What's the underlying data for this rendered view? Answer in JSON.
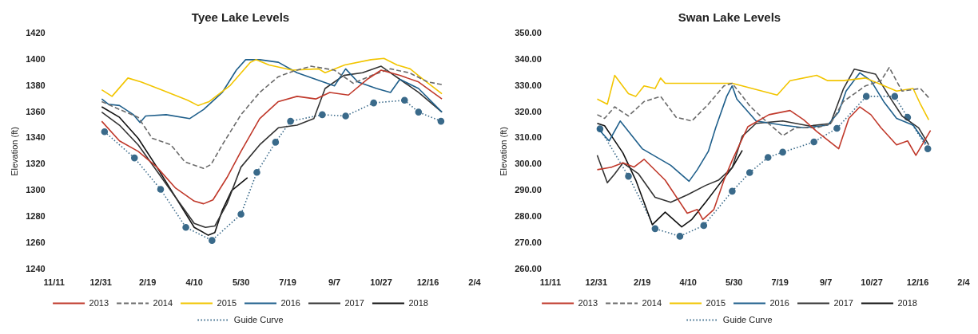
{
  "chart_data": [
    {
      "type": "line",
      "title": "Tyee Lake Levels",
      "ylabel": "Elevation (ft)",
      "xlim": [
        "2017-11-11",
        "2019-02-04"
      ],
      "xticks": [
        {
          "value": "2017-11-11",
          "label": "11/11"
        },
        {
          "value": "2017-12-31",
          "label": "12/31"
        },
        {
          "value": "2018-02-19",
          "label": "2/19"
        },
        {
          "value": "2018-04-10",
          "label": "4/10"
        },
        {
          "value": "2018-05-30",
          "label": "5/30"
        },
        {
          "value": "2018-07-19",
          "label": "7/19"
        },
        {
          "value": "2018-09-07",
          "label": "9/7"
        },
        {
          "value": "2018-10-27",
          "label": "10/27"
        },
        {
          "value": "2018-12-16",
          "label": "12/16"
        },
        {
          "value": "2019-02-04",
          "label": "2/4"
        }
      ],
      "ylim": [
        1240,
        1420
      ],
      "yticks": [
        1240,
        1260,
        1280,
        1300,
        1320,
        1340,
        1360,
        1380,
        1400,
        1420
      ],
      "grid": false,
      "legend": "bottom",
      "series": [
        {
          "name": "2013",
          "color": "#c0392b",
          "line_style": "solid",
          "marker": "none",
          "x": [
            "2018-01-01",
            "2018-01-20",
            "2018-02-09",
            "2018-03-01",
            "2018-03-21",
            "2018-04-10",
            "2018-04-20",
            "2018-04-30",
            "2018-05-15",
            "2018-05-30",
            "2018-06-19",
            "2018-07-09",
            "2018-07-29",
            "2018-08-18",
            "2018-09-02",
            "2018-09-22",
            "2018-10-12",
            "2018-10-27",
            "2018-11-16",
            "2018-12-06",
            "2018-12-31"
          ],
          "values": [
            1353,
            1338,
            1330,
            1318,
            1302,
            1292,
            1290,
            1293,
            1310,
            1330,
            1355,
            1368,
            1372,
            1370,
            1375,
            1373,
            1385,
            1392,
            1388,
            1383,
            1370
          ]
        },
        {
          "name": "2014",
          "color": "#6b6b6b",
          "line_style": "dashed",
          "marker": "none",
          "x": [
            "2018-01-01",
            "2018-01-20",
            "2018-02-09",
            "2018-02-24",
            "2018-03-16",
            "2018-03-31",
            "2018-04-20",
            "2018-04-28",
            "2018-05-10",
            "2018-05-30",
            "2018-06-19",
            "2018-07-09",
            "2018-07-24",
            "2018-08-13",
            "2018-09-07",
            "2018-09-27",
            "2018-10-17",
            "2018-11-06",
            "2018-11-26",
            "2018-12-16",
            "2018-12-31"
          ],
          "values": [
            1368,
            1362,
            1356,
            1340,
            1335,
            1322,
            1317,
            1320,
            1335,
            1358,
            1375,
            1387,
            1391,
            1395,
            1392,
            1382,
            1388,
            1393,
            1390,
            1383,
            1381
          ]
        },
        {
          "name": "2015",
          "color": "#f2c500",
          "line_style": "solid",
          "marker": "none",
          "x": [
            "2018-01-01",
            "2018-01-12",
            "2018-01-29",
            "2018-02-12",
            "2018-03-06",
            "2018-04-03",
            "2018-04-14",
            "2018-04-26",
            "2018-05-18",
            "2018-06-09",
            "2018-06-15",
            "2018-06-29",
            "2018-07-24",
            "2018-08-21",
            "2018-08-28",
            "2018-09-18",
            "2018-10-16",
            "2018-10-30",
            "2018-11-13",
            "2018-11-27",
            "2018-12-11",
            "2018-12-31"
          ],
          "values": [
            1377,
            1372,
            1386,
            1383,
            1377,
            1369,
            1365,
            1368,
            1380,
            1398,
            1400,
            1396,
            1392,
            1393,
            1390,
            1396,
            1400,
            1401,
            1396,
            1393,
            1385,
            1374
          ]
        },
        {
          "name": "2016",
          "color": "#1f5f8b",
          "line_style": "solid",
          "marker": "none",
          "x": [
            "2018-01-01",
            "2018-01-08",
            "2018-01-20",
            "2018-02-04",
            "2018-02-11",
            "2018-02-17",
            "2018-03-11",
            "2018-04-05",
            "2018-04-20",
            "2018-05-10",
            "2018-05-25",
            "2018-06-04",
            "2018-06-19",
            "2018-07-09",
            "2018-07-29",
            "2018-08-18",
            "2018-09-07",
            "2018-09-19",
            "2018-10-02",
            "2018-10-22",
            "2018-11-06",
            "2018-11-16",
            "2018-12-06",
            "2018-12-31"
          ],
          "values": [
            1370,
            1366,
            1365,
            1358,
            1352,
            1357,
            1358,
            1355,
            1362,
            1375,
            1392,
            1400,
            1400,
            1398,
            1390,
            1385,
            1380,
            1393,
            1383,
            1378,
            1375,
            1385,
            1378,
            1360
          ]
        },
        {
          "name": "2017",
          "color": "#333333",
          "line_style": "solid",
          "marker": "none",
          "x": [
            "2018-01-01",
            "2018-01-20",
            "2018-02-09",
            "2018-03-01",
            "2018-03-21",
            "2018-04-10",
            "2018-04-22",
            "2018-05-02",
            "2018-05-15",
            "2018-05-30",
            "2018-06-19",
            "2018-07-09",
            "2018-07-29",
            "2018-08-16",
            "2018-08-28",
            "2018-09-17",
            "2018-10-07",
            "2018-10-27",
            "2018-11-16",
            "2018-12-06",
            "2018-12-31"
          ],
          "values": [
            1360,
            1350,
            1335,
            1315,
            1295,
            1275,
            1272,
            1273,
            1290,
            1318,
            1335,
            1348,
            1350,
            1355,
            1378,
            1388,
            1390,
            1395,
            1385,
            1375,
            1360
          ]
        },
        {
          "name": "2018",
          "color": "#111111",
          "line_style": "solid",
          "marker": "none",
          "x": [
            "2018-01-01",
            "2018-01-20",
            "2018-02-09",
            "2018-03-01",
            "2018-03-21",
            "2018-04-10",
            "2018-04-25",
            "2018-05-02",
            "2018-05-10",
            "2018-05-20",
            "2018-06-06"
          ],
          "values": [
            1364,
            1356,
            1340,
            1318,
            1295,
            1272,
            1266,
            1268,
            1285,
            1300,
            1310
          ]
        },
        {
          "name": "Guide Curve",
          "color": "#3a6a8a",
          "line_style": "dotted",
          "marker": "circle",
          "x": [
            "2018-01-04",
            "2018-02-05",
            "2018-03-05",
            "2018-04-01",
            "2018-04-29",
            "2018-05-30",
            "2018-06-16",
            "2018-07-06",
            "2018-07-22",
            "2018-08-25",
            "2018-09-19",
            "2018-10-19",
            "2018-11-21",
            "2018-12-06",
            "2018-12-30"
          ],
          "values": [
            1345,
            1325,
            1301,
            1272,
            1262,
            1282,
            1314,
            1337,
            1353,
            1358,
            1357,
            1367,
            1369,
            1360,
            1353
          ]
        }
      ]
    },
    {
      "type": "line",
      "title": "Swan Lake Levels",
      "ylabel": "Elevation (ft)",
      "xlim": [
        "2017-11-11",
        "2019-02-04"
      ],
      "xticks": [
        {
          "value": "2017-11-11",
          "label": "11/11"
        },
        {
          "value": "2017-12-31",
          "label": "12/31"
        },
        {
          "value": "2018-02-19",
          "label": "2/19"
        },
        {
          "value": "2018-04-10",
          "label": "4/10"
        },
        {
          "value": "2018-05-30",
          "label": "5/30"
        },
        {
          "value": "2018-07-19",
          "label": "7/19"
        },
        {
          "value": "2018-09-07",
          "label": "9/7"
        },
        {
          "value": "2018-10-27",
          "label": "10/27"
        },
        {
          "value": "2018-12-16",
          "label": "12/16"
        },
        {
          "value": "2019-02-04",
          "label": "2/4"
        }
      ],
      "ylim": [
        260,
        350
      ],
      "yticks": [
        {
          "value": 260,
          "label": "260.00"
        },
        {
          "value": 270,
          "label": "270.00"
        },
        {
          "value": 280,
          "label": "280.00"
        },
        {
          "value": 290,
          "label": "290.00"
        },
        {
          "value": 300,
          "label": "300.00"
        },
        {
          "value": 310,
          "label": "310.00"
        },
        {
          "value": 320,
          "label": "320.00"
        },
        {
          "value": 330,
          "label": "330.00"
        },
        {
          "value": 340,
          "label": "340.00"
        },
        {
          "value": 350,
          "label": "350.00"
        }
      ],
      "grid": false,
      "legend": "bottom",
      "series": [
        {
          "name": "2013",
          "color": "#c0392b",
          "line_style": "solid",
          "marker": "none",
          "x": [
            "2018-01-01",
            "2018-01-17",
            "2018-01-29",
            "2018-02-10",
            "2018-02-21",
            "2018-03-16",
            "2018-04-09",
            "2018-04-20",
            "2018-04-26",
            "2018-05-08",
            "2018-05-19",
            "2018-05-28",
            "2018-06-14",
            "2018-07-07",
            "2018-07-30",
            "2018-08-14",
            "2018-08-28",
            "2018-09-21",
            "2018-10-02",
            "2018-10-14",
            "2018-10-26",
            "2018-11-06",
            "2018-11-23",
            "2018-12-05",
            "2018-12-14",
            "2018-12-25",
            "2018-12-30"
          ],
          "values": [
            298,
            299,
            300.6,
            299,
            302,
            294,
            281.4,
            282.8,
            279,
            282.8,
            294,
            301.6,
            314.4,
            319,
            320.6,
            317,
            312.6,
            306,
            317.6,
            322,
            319,
            314,
            307.5,
            309,
            303.5,
            310,
            313
          ]
        },
        {
          "name": "2014",
          "color": "#6b6b6b",
          "line_style": "dashed",
          "marker": "none",
          "x": [
            "2018-01-01",
            "2018-01-09",
            "2018-01-20",
            "2018-02-04",
            "2018-02-21",
            "2018-03-11",
            "2018-03-28",
            "2018-04-14",
            "2018-05-02",
            "2018-05-19",
            "2018-05-28",
            "2018-06-17",
            "2018-07-07",
            "2018-07-22",
            "2018-08-05",
            "2018-08-28",
            "2018-09-12",
            "2018-09-26",
            "2018-10-08",
            "2018-10-20",
            "2018-11-06",
            "2018-11-15",
            "2018-11-29",
            "2018-12-19",
            "2018-12-28"
          ],
          "values": [
            319,
            317.6,
            322,
            318.5,
            324,
            326,
            318,
            316.6,
            323,
            330,
            331,
            322,
            315.5,
            311,
            314,
            314,
            315.5,
            324,
            327,
            330,
            332,
            337,
            328,
            329,
            325.5
          ]
        },
        {
          "name": "2015",
          "color": "#f2c500",
          "line_style": "solid",
          "marker": "none",
          "x": [
            "2018-01-01",
            "2018-01-12",
            "2018-01-20",
            "2018-02-04",
            "2018-02-12",
            "2018-02-21",
            "2018-03-05",
            "2018-03-11",
            "2018-03-16",
            "2018-04-20",
            "2018-05-28",
            "2018-06-08",
            "2018-07-16",
            "2018-07-30",
            "2018-08-28",
            "2018-09-09",
            "2018-09-26",
            "2018-10-20",
            "2018-11-03",
            "2018-11-23",
            "2018-12-11",
            "2018-12-19",
            "2018-12-28"
          ],
          "values": [
            325,
            323,
            334,
            327,
            326,
            330,
            329,
            333,
            331,
            331,
            331,
            330,
            326.5,
            332,
            334,
            332,
            332,
            333,
            331,
            328,
            329,
            323,
            317
          ]
        },
        {
          "name": "2016",
          "color": "#1f5f8b",
          "line_style": "solid",
          "marker": "none",
          "x": [
            "2018-01-01",
            "2018-01-14",
            "2018-01-26",
            "2018-02-19",
            "2018-03-22",
            "2018-04-11",
            "2018-04-20",
            "2018-05-02",
            "2018-05-10",
            "2018-05-22",
            "2018-05-28",
            "2018-06-02",
            "2018-06-23",
            "2018-07-22",
            "2018-08-14",
            "2018-09-09",
            "2018-09-21",
            "2018-09-29",
            "2018-10-14",
            "2018-10-26",
            "2018-11-09",
            "2018-11-23",
            "2018-12-11",
            "2018-12-25"
          ],
          "values": [
            314,
            309,
            316.6,
            306,
            299.7,
            293.6,
            298,
            305,
            314,
            326,
            330,
            325,
            316.6,
            315,
            314,
            315,
            320,
            328,
            335,
            332,
            324,
            317.6,
            315,
            308
          ]
        },
        {
          "name": "2017",
          "color": "#333333",
          "line_style": "solid",
          "marker": "none",
          "x": [
            "2018-01-01",
            "2018-01-12",
            "2018-01-20",
            "2018-01-29",
            "2018-02-15",
            "2018-03-05",
            "2018-03-22",
            "2018-04-09",
            "2018-04-29",
            "2018-05-13",
            "2018-05-28",
            "2018-06-08",
            "2018-06-23",
            "2018-07-22",
            "2018-08-20",
            "2018-09-12",
            "2018-09-26",
            "2018-10-08",
            "2018-10-31",
            "2018-11-15",
            "2018-11-29",
            "2018-12-17",
            "2018-12-28"
          ],
          "values": [
            303.5,
            293,
            296.4,
            300.6,
            296.4,
            287.5,
            285.6,
            288.4,
            292,
            294,
            298.8,
            310.8,
            315.7,
            316.6,
            314.7,
            315.6,
            328.8,
            336.4,
            334.5,
            326,
            318.5,
            314,
            307.5
          ]
        },
        {
          "name": "2018",
          "color": "#111111",
          "line_style": "solid",
          "marker": "none",
          "x": [
            "2018-01-01",
            "2018-01-09",
            "2018-01-29",
            "2018-02-12",
            "2018-03-02",
            "2018-03-16",
            "2018-04-03",
            "2018-04-14",
            "2018-04-29",
            "2018-05-13",
            "2018-05-28",
            "2018-06-08"
          ],
          "values": [
            315.7,
            314.8,
            304.4,
            294,
            277,
            281.8,
            276.2,
            279,
            285.6,
            292,
            298.8,
            305.4
          ]
        },
        {
          "name": "Guide Curve",
          "color": "#3a6a8a",
          "line_style": "dotted",
          "marker": "circle",
          "x": [
            "2018-01-04",
            "2018-02-04",
            "2018-03-05",
            "2018-04-01",
            "2018-04-27",
            "2018-05-28",
            "2018-06-16",
            "2018-07-06",
            "2018-07-22",
            "2018-08-25",
            "2018-09-19",
            "2018-10-21",
            "2018-11-21",
            "2018-12-05",
            "2018-12-27"
          ],
          "values": [
            313.6,
            295.5,
            275.5,
            272.6,
            276.7,
            289.8,
            296.9,
            302.7,
            304.7,
            308.6,
            313.8,
            326,
            326,
            318,
            306
          ]
        }
      ]
    }
  ]
}
